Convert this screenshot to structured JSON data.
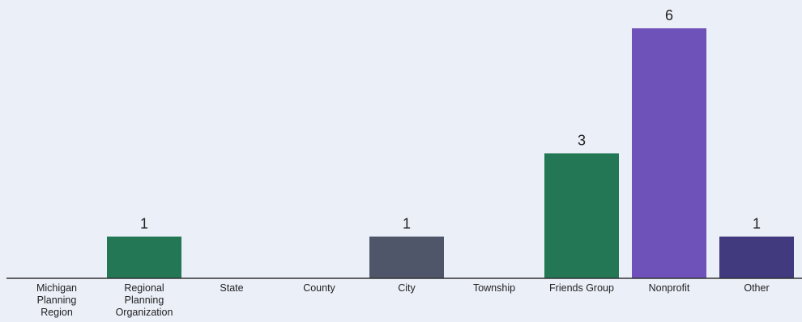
{
  "chart_data": {
    "type": "bar",
    "title": "",
    "xlabel": "",
    "ylabel": "",
    "ylim": [
      0,
      6
    ],
    "grid": false,
    "categories": [
      "Michigan Planning Region",
      "Regional Planning Organization",
      "State",
      "County",
      "City",
      "Township",
      "Friends Group",
      "Nonprofit",
      "Other"
    ],
    "category_lines": [
      [
        "Michigan",
        "Planning",
        "Region"
      ],
      [
        "Regional",
        "Planning",
        "Organization"
      ],
      [
        "State"
      ],
      [
        "County"
      ],
      [
        "City"
      ],
      [
        "Township"
      ],
      [
        "Friends Group"
      ],
      [
        "Nonprofit"
      ],
      [
        "Other"
      ]
    ],
    "values": [
      0,
      1,
      0,
      0,
      1,
      0,
      3,
      6,
      1
    ],
    "data_labels": [
      "",
      "1",
      "",
      "",
      "1",
      "",
      "3",
      "6",
      "1"
    ],
    "colors": [
      "#237755",
      "#237755",
      "#237755",
      "#237755",
      "#50566a",
      "#237755",
      "#237755",
      "#6f52b9",
      "#413a7e"
    ]
  }
}
